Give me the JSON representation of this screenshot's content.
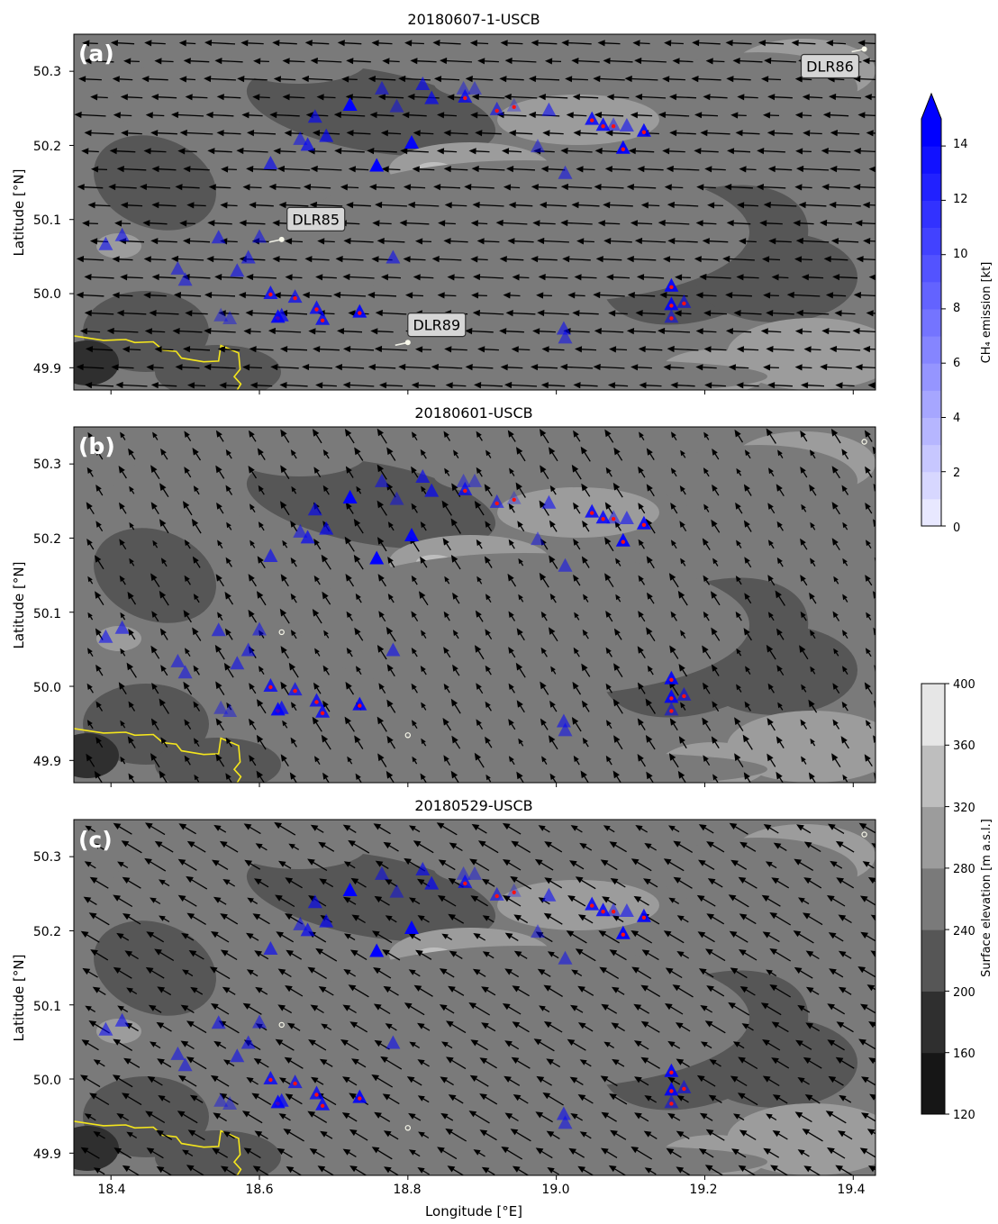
{
  "chart_data": [
    {
      "type": "map",
      "panel_label": "(a)",
      "title": "20180607-1-USCB",
      "ylabel": "Latitude [°N]",
      "xlabel": "",
      "xlim": [
        18.35,
        19.43
      ],
      "ylim": [
        49.87,
        50.35
      ],
      "y_ticks": [
        "50.3",
        "50.2",
        "50.1",
        "50.0",
        "49.9"
      ],
      "x_ticks": [],
      "wind": {
        "u": -1.0,
        "v": 0.05,
        "scale": 1.0
      },
      "station_labels": [
        {
          "text": "DLR86",
          "lon": 19.41,
          "lat": 50.33
        },
        {
          "text": "DLR85",
          "lon": 18.63,
          "lat": 50.07
        },
        {
          "text": "DLR89",
          "lon": 18.8,
          "lat": 49.93
        }
      ],
      "station_dots": [
        {
          "lon": 19.415,
          "lat": 50.33
        },
        {
          "lon": 18.63,
          "lat": 50.073
        },
        {
          "lon": 18.8,
          "lat": 49.934
        }
      ]
    },
    {
      "type": "map",
      "panel_label": "(b)",
      "title": "20180601-USCB",
      "ylabel": "Latitude [°N]",
      "xlabel": "",
      "xlim": [
        18.35,
        19.43
      ],
      "ylim": [
        49.87,
        50.35
      ],
      "y_ticks": [
        "50.3",
        "50.2",
        "50.1",
        "50.0",
        "49.9"
      ],
      "x_ticks": [],
      "wind": {
        "u": -0.35,
        "v": 0.55,
        "scale": 0.55
      },
      "station_labels": [],
      "station_dots": [
        {
          "lon": 19.415,
          "lat": 50.33
        },
        {
          "lon": 18.63,
          "lat": 50.073
        },
        {
          "lon": 18.8,
          "lat": 49.934
        }
      ]
    },
    {
      "type": "map",
      "panel_label": "(c)",
      "title": "20180529-USCB",
      "ylabel": "Latitude [°N]",
      "xlabel": "Longitude [°E]",
      "xlim": [
        18.35,
        19.43
      ],
      "ylim": [
        49.87,
        50.35
      ],
      "y_ticks": [
        "50.3",
        "50.2",
        "50.1",
        "50.0",
        "49.9"
      ],
      "x_ticks": [
        "18.4",
        "18.6",
        "18.8",
        "19.0",
        "19.2",
        "19.4"
      ],
      "wind": {
        "u": -0.75,
        "v": 0.45,
        "scale": 0.75
      },
      "station_labels": [],
      "station_dots": [
        {
          "lon": 19.415,
          "lat": 50.33
        },
        {
          "lon": 18.63,
          "lat": 50.073
        },
        {
          "lon": 18.8,
          "lat": 49.934
        }
      ]
    }
  ],
  "sources": [
    {
      "lon": 18.393,
      "lat": 50.066,
      "e": 6
    },
    {
      "lon": 18.415,
      "lat": 50.078,
      "e": 6
    },
    {
      "lon": 18.49,
      "lat": 50.033,
      "e": 5
    },
    {
      "lon": 18.5,
      "lat": 50.018,
      "e": 5
    },
    {
      "lon": 18.545,
      "lat": 50.075,
      "e": 6
    },
    {
      "lon": 18.548,
      "lat": 49.97,
      "e": 3
    },
    {
      "lon": 18.56,
      "lat": 49.966,
      "e": 3
    },
    {
      "lon": 18.57,
      "lat": 50.03,
      "e": 6
    },
    {
      "lon": 18.585,
      "lat": 50.048,
      "e": 6
    },
    {
      "lon": 18.6,
      "lat": 50.076,
      "e": 5
    },
    {
      "lon": 18.615,
      "lat": 50.175,
      "e": 7
    },
    {
      "lon": 18.615,
      "lat": 50.0,
      "e": 10,
      "red": true
    },
    {
      "lon": 18.625,
      "lat": 49.968,
      "e": 12,
      "red": true
    },
    {
      "lon": 18.63,
      "lat": 49.97,
      "e": 9
    },
    {
      "lon": 18.648,
      "lat": 49.995,
      "e": 8,
      "red": true
    },
    {
      "lon": 18.655,
      "lat": 50.208,
      "e": 5
    },
    {
      "lon": 18.665,
      "lat": 50.2,
      "e": 8
    },
    {
      "lon": 18.675,
      "lat": 50.238,
      "e": 7
    },
    {
      "lon": 18.677,
      "lat": 49.98,
      "e": 10,
      "red": true
    },
    {
      "lon": 18.685,
      "lat": 49.965,
      "e": 10,
      "red": true
    },
    {
      "lon": 18.69,
      "lat": 50.212,
      "e": 8
    },
    {
      "lon": 18.722,
      "lat": 50.254,
      "e": 14
    },
    {
      "lon": 18.735,
      "lat": 49.975,
      "e": 12,
      "red": true
    },
    {
      "lon": 18.758,
      "lat": 50.172,
      "e": 14
    },
    {
      "lon": 18.765,
      "lat": 50.276,
      "e": 5
    },
    {
      "lon": 18.78,
      "lat": 50.048,
      "e": 6
    },
    {
      "lon": 18.785,
      "lat": 50.252,
      "e": 4
    },
    {
      "lon": 18.805,
      "lat": 50.203,
      "e": 13
    },
    {
      "lon": 18.82,
      "lat": 50.282,
      "e": 7
    },
    {
      "lon": 18.832,
      "lat": 50.263,
      "e": 8
    },
    {
      "lon": 18.875,
      "lat": 50.276,
      "e": 3
    },
    {
      "lon": 18.877,
      "lat": 50.265,
      "e": 9,
      "red": true
    },
    {
      "lon": 18.89,
      "lat": 50.276,
      "e": 3
    },
    {
      "lon": 18.92,
      "lat": 50.248,
      "e": 6,
      "red": true
    },
    {
      "lon": 18.943,
      "lat": 50.253,
      "e": 1,
      "red": true
    },
    {
      "lon": 18.975,
      "lat": 50.198,
      "e": 4
    },
    {
      "lon": 18.99,
      "lat": 50.247,
      "e": 6
    },
    {
      "lon": 19.012,
      "lat": 50.162,
      "e": 5
    },
    {
      "lon": 19.01,
      "lat": 49.952,
      "e": 6
    },
    {
      "lon": 19.012,
      "lat": 49.94,
      "e": 5
    },
    {
      "lon": 19.048,
      "lat": 50.235,
      "e": 11,
      "red": true
    },
    {
      "lon": 19.063,
      "lat": 50.227,
      "e": 11,
      "red": true
    },
    {
      "lon": 19.077,
      "lat": 50.227,
      "e": 4,
      "red": true
    },
    {
      "lon": 19.095,
      "lat": 50.226,
      "e": 6
    },
    {
      "lon": 19.09,
      "lat": 50.196,
      "e": 13,
      "red": true
    },
    {
      "lon": 19.118,
      "lat": 50.219,
      "e": 12,
      "red": true
    },
    {
      "lon": 19.155,
      "lat": 50.01,
      "e": 12,
      "red": true
    },
    {
      "lon": 19.155,
      "lat": 49.985,
      "e": 12,
      "red": true
    },
    {
      "lon": 19.155,
      "lat": 49.968,
      "e": 5,
      "red": true
    },
    {
      "lon": 19.172,
      "lat": 49.988,
      "e": 6,
      "red": true
    }
  ],
  "border": [
    [
      18.35,
      49.943
    ],
    [
      18.39,
      49.937
    ],
    [
      18.42,
      49.938
    ],
    [
      18.432,
      49.934
    ],
    [
      18.457,
      49.935
    ],
    [
      18.47,
      49.924
    ],
    [
      18.488,
      49.922
    ],
    [
      18.495,
      49.913
    ],
    [
      18.525,
      49.908
    ],
    [
      18.545,
      49.909
    ],
    [
      18.548,
      49.93
    ],
    [
      18.56,
      49.925
    ],
    [
      18.572,
      49.92
    ],
    [
      18.574,
      49.898
    ],
    [
      18.566,
      49.888
    ],
    [
      18.575,
      49.878
    ],
    [
      18.57,
      49.87
    ]
  ],
  "colorbars": [
    {
      "label": "CH₄ emission [kt]",
      "ticks": [
        "0",
        "2",
        "4",
        "6",
        "8",
        "10",
        "12",
        "14"
      ],
      "range": [
        0,
        15
      ],
      "extend": "max",
      "color_from": "#e8e8ff",
      "color_to": "#0000ff"
    },
    {
      "label": "Surface elevation [m a.s.l.]",
      "ticks": [
        "120",
        "160",
        "200",
        "240",
        "280",
        "320",
        "360",
        "400"
      ],
      "range": [
        120,
        400
      ],
      "levels": [
        "#161616",
        "#2f2f2f",
        "#565656",
        "#7a7a7a",
        "#9c9c9c",
        "#bebebe",
        "#e6e6e6"
      ]
    }
  ]
}
